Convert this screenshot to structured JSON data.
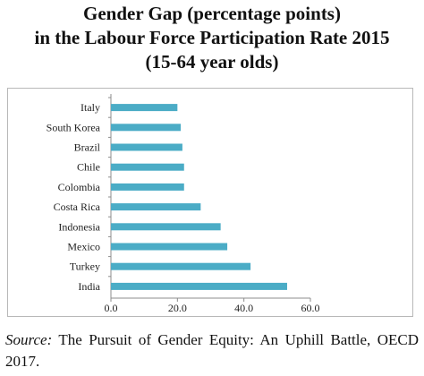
{
  "title": {
    "line1": "Gender Gap (percentage points)",
    "line2": "in the Labour Force Participation Rate 2015",
    "line3": "(15-64 year olds)"
  },
  "source": {
    "label": "Source:",
    "text": "The Pursuit of Gender Equity: An Uphill Battle, OECD 2017."
  },
  "colors": {
    "bar": "#4bacc6",
    "axis": "#8c8c8c"
  },
  "chart_data": {
    "type": "bar",
    "orientation": "horizontal",
    "categories": [
      "Italy",
      "South Korea",
      "Brazil",
      "Chile",
      "Colombia",
      "Costa Rica",
      "Indonesia",
      "Mexico",
      "Turkey",
      "India"
    ],
    "values": [
      20.0,
      21.0,
      21.5,
      22.0,
      22.0,
      27.0,
      33.0,
      35.0,
      42.0,
      53.0
    ],
    "xlim": [
      0,
      60
    ],
    "xticks": [
      "0.0",
      "20.0",
      "40.0",
      "60.0"
    ],
    "xtick_values": [
      0,
      20,
      40,
      60
    ],
    "grid": false
  }
}
